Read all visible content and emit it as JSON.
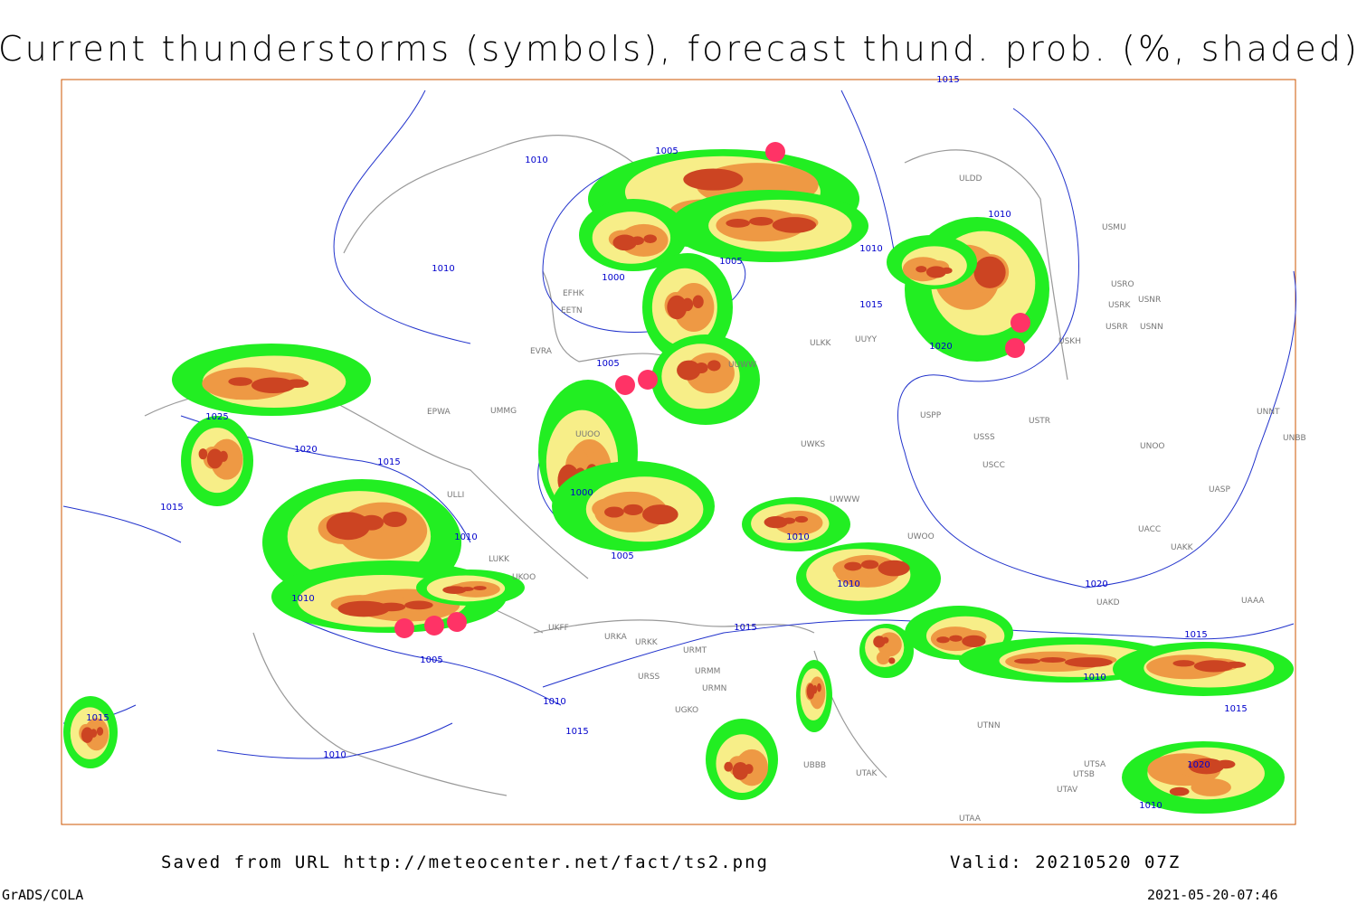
{
  "header": {
    "title": "Current thunderstorms (symbols), forecast thund. prob. (%, shaded)"
  },
  "map": {
    "isobars": [
      "1015",
      "1010",
      "1005",
      "1010",
      "1000",
      "1005",
      "1010",
      "1010",
      "1015",
      "1020",
      "1005",
      "1025",
      "1020",
      "1015",
      "1015",
      "1000",
      "1010",
      "1005",
      "1010",
      "1010",
      "1010",
      "1005",
      "1015",
      "1010",
      "1015",
      "1010",
      "1015",
      "1020",
      "1015",
      "1010",
      "1015",
      "1020",
      "1010"
    ],
    "stations": [
      "ULDD",
      "USMU",
      "USRO",
      "USRK",
      "USNR",
      "USRR",
      "USNN",
      "USKH",
      "ULKK",
      "UUYY",
      "UUWW",
      "USPP",
      "USTR",
      "USSS",
      "UNOO",
      "UWKS",
      "USCC",
      "UACC",
      "UAKK",
      "UAKD",
      "UNNT",
      "UNBB",
      "UASP",
      "UAAA",
      "LUKK",
      "UKOO",
      "UKFF",
      "URKA",
      "URKK",
      "URMT",
      "URSS",
      "URMM",
      "URMN",
      "UGKO",
      "UBBB",
      "UTAK",
      "UTNN",
      "UTSA",
      "UTSB",
      "UTAV",
      "UTAA",
      "EPWA",
      "UMMG",
      "ULLI",
      "EFHK",
      "EETN",
      "EVRA",
      "UUOO",
      "UWWW",
      "UWOO"
    ]
  },
  "footer": {
    "source": "Saved from URL http://meteocenter.net/fact/ts2.png",
    "valid": "Valid: 20210520 07Z",
    "software": "GrADS/COLA",
    "timestamp": "2021-05-20-07:46"
  }
}
